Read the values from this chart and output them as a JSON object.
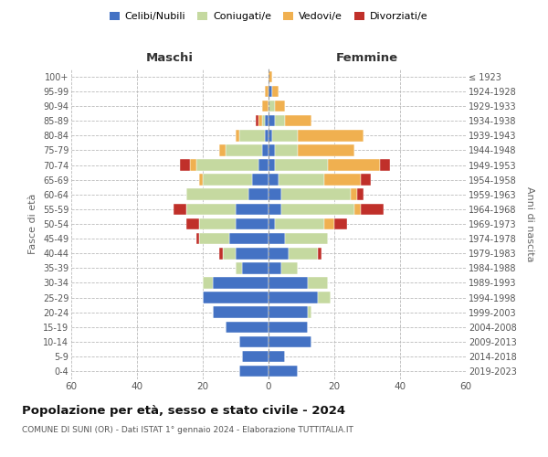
{
  "age_groups": [
    "0-4",
    "5-9",
    "10-14",
    "15-19",
    "20-24",
    "25-29",
    "30-34",
    "35-39",
    "40-44",
    "45-49",
    "50-54",
    "55-59",
    "60-64",
    "65-69",
    "70-74",
    "75-79",
    "80-84",
    "85-89",
    "90-94",
    "95-99",
    "100+"
  ],
  "birth_years": [
    "2019-2023",
    "2014-2018",
    "2009-2013",
    "2004-2008",
    "1999-2003",
    "1994-1998",
    "1989-1993",
    "1984-1988",
    "1979-1983",
    "1974-1978",
    "1969-1973",
    "1964-1968",
    "1959-1963",
    "1954-1958",
    "1949-1953",
    "1944-1948",
    "1939-1943",
    "1934-1938",
    "1929-1933",
    "1924-1928",
    "≤ 1923"
  ],
  "colors": {
    "celibi": "#4472C4",
    "coniugati": "#C5D9A0",
    "vedovi": "#F0B050",
    "divorziati": "#C0302A"
  },
  "maschi": {
    "celibi": [
      9,
      8,
      9,
      13,
      17,
      20,
      17,
      8,
      10,
      12,
      10,
      10,
      6,
      5,
      3,
      2,
      1,
      1,
      0,
      0,
      0
    ],
    "coniugati": [
      0,
      0,
      0,
      0,
      0,
      0,
      3,
      2,
      4,
      9,
      11,
      15,
      19,
      15,
      19,
      11,
      8,
      1,
      0,
      0,
      0
    ],
    "vedovi": [
      0,
      0,
      0,
      0,
      0,
      0,
      0,
      0,
      0,
      0,
      0,
      0,
      0,
      1,
      2,
      2,
      1,
      1,
      2,
      1,
      0
    ],
    "divorziati": [
      0,
      0,
      0,
      0,
      0,
      0,
      0,
      0,
      1,
      1,
      4,
      4,
      0,
      0,
      3,
      0,
      0,
      1,
      0,
      0,
      0
    ]
  },
  "femmine": {
    "celibi": [
      9,
      5,
      13,
      12,
      12,
      15,
      12,
      4,
      6,
      5,
      2,
      4,
      4,
      3,
      2,
      2,
      1,
      2,
      0,
      1,
      0
    ],
    "coniugati": [
      0,
      0,
      0,
      0,
      1,
      4,
      6,
      5,
      9,
      13,
      15,
      22,
      21,
      14,
      16,
      7,
      8,
      3,
      2,
      0,
      0
    ],
    "vedovi": [
      0,
      0,
      0,
      0,
      0,
      0,
      0,
      0,
      0,
      0,
      3,
      2,
      2,
      11,
      16,
      17,
      20,
      8,
      3,
      2,
      1
    ],
    "divorziati": [
      0,
      0,
      0,
      0,
      0,
      0,
      0,
      0,
      1,
      0,
      4,
      7,
      2,
      3,
      3,
      0,
      0,
      0,
      0,
      0,
      0
    ]
  },
  "xlim": 60,
  "title": "Popolazione per età, sesso e stato civile - 2024",
  "subtitle": "COMUNE DI SUNI (OR) - Dati ISTAT 1° gennaio 2024 - Elaborazione TUTTITALIA.IT",
  "xlabel_left": "Maschi",
  "xlabel_right": "Femmine",
  "ylabel_left": "Fasce di età",
  "ylabel_right": "Anni di nascita",
  "legend_labels": [
    "Celibi/Nubili",
    "Coniugati/e",
    "Vedovi/e",
    "Divorziati/e"
  ]
}
